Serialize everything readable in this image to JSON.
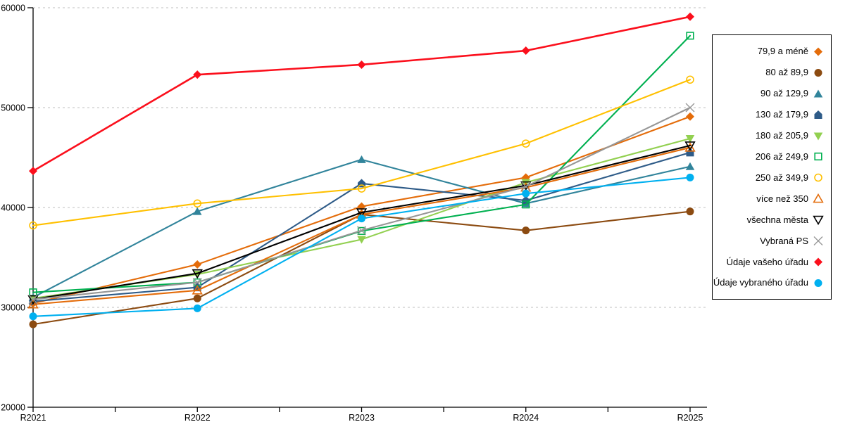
{
  "chart_data": {
    "type": "line",
    "title": "",
    "xlabel": "",
    "ylabel": "",
    "categories": [
      "R2021",
      "R2022",
      "R2023",
      "R2024",
      "R2025"
    ],
    "y_axis": {
      "min": 20000,
      "max": 60000,
      "step": 10000,
      "tick_labels": [
        "20000",
        "30000",
        "40000",
        "50000",
        "60000"
      ]
    },
    "grid": "horizontal-dashed",
    "legend_position": "right",
    "series": [
      {
        "name": "79,9 a méně",
        "color": "#E46C0A",
        "marker": "diamond",
        "values": [
          30400,
          34300,
          40100,
          43000,
          49100
        ]
      },
      {
        "name": "80 až 89,9",
        "color": "#8C4B11",
        "marker": "circle",
        "values": [
          28300,
          30900,
          39300,
          37700,
          39600
        ]
      },
      {
        "name": "90 až 129,9",
        "color": "#31849B",
        "marker": "triangle-up",
        "values": [
          31000,
          39600,
          44800,
          40400,
          44100
        ]
      },
      {
        "name": "130 až 179,9",
        "color": "#2E5B88",
        "marker": "pentagon",
        "values": [
          30600,
          32000,
          42400,
          40700,
          45500
        ]
      },
      {
        "name": "180 až 205,9",
        "color": "#92D050",
        "marker": "triangle-down",
        "values": [
          30900,
          33300,
          36800,
          42500,
          46900
        ]
      },
      {
        "name": "206 až 249,9",
        "color": "#00B050",
        "marker": "square-open",
        "values": [
          31500,
          32500,
          37650,
          40300,
          57200
        ]
      },
      {
        "name": "250 až 349,9",
        "color": "#FFC000",
        "marker": "circle-open",
        "values": [
          38200,
          40400,
          41900,
          46400,
          52800
        ]
      },
      {
        "name": "více než 350",
        "color": "#E46C0A",
        "marker": "triangle-up-open",
        "values": [
          30300,
          31700,
          39300,
          42000,
          46000
        ]
      },
      {
        "name": "všechna města",
        "color": "#000000",
        "marker": "triangle-down-open",
        "values": [
          30800,
          33400,
          39500,
          42200,
          46200
        ]
      },
      {
        "name": "Vybraná PS",
        "color": "#969696",
        "marker": "x",
        "values": [
          30800,
          32500,
          37700,
          42100,
          50000
        ]
      },
      {
        "name": "Údaje vašeho úřadu",
        "color": "#FB0F1C",
        "marker": "diamond",
        "values": [
          43650,
          53300,
          54300,
          55700,
          59100
        ]
      },
      {
        "name": "Údaje vybraného úřadu",
        "color": "#00B0F0",
        "marker": "circle",
        "values": [
          29100,
          29900,
          38900,
          41400,
          43000
        ]
      }
    ]
  },
  "layout_colors": {
    "grid": "#BFBFBF",
    "axis": "#000000",
    "tick_text": "#000000"
  }
}
